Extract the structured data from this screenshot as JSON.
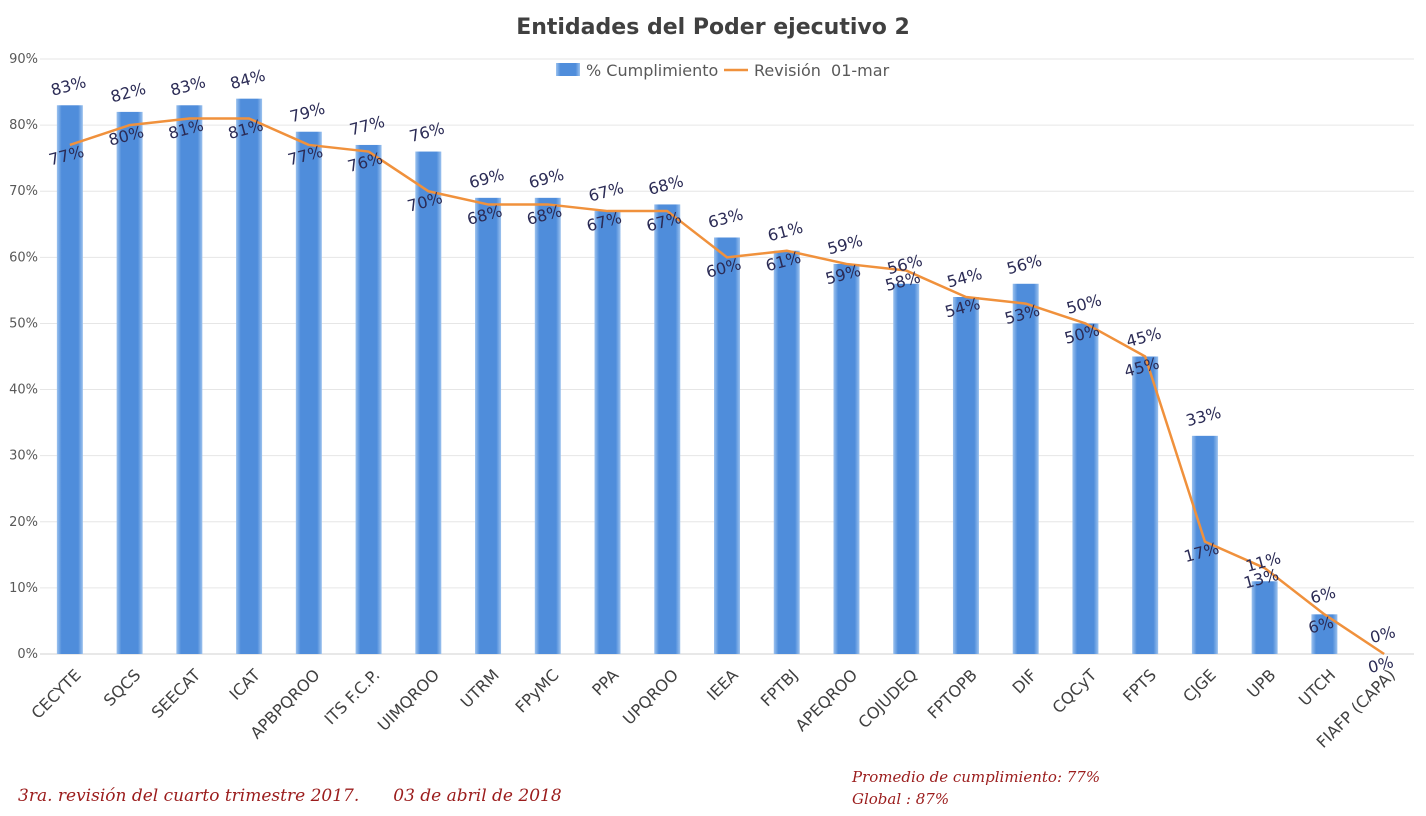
{
  "chart_data": {
    "type": "bar",
    "title": "Entidades del Poder ejecutivo 2",
    "categories": [
      "CECYTE",
      "SQCS",
      "SEECAT",
      "ICAT",
      "APBPQROO",
      "ITS F.C.P.",
      "UIMQROO",
      "UTRM",
      "FPyMC",
      "PPA",
      "UPQROO",
      "IEEA",
      "FPTBJ",
      "APEQROO",
      "COJUDEQ",
      "FPTOPB",
      "DIF",
      "CQCyT",
      "FPTS",
      "CJGE",
      "UPB",
      "UTCH",
      "FIAFP (CAPA)"
    ],
    "series": [
      {
        "name": "% Cumplimiento",
        "type": "bar",
        "color": "#4f8ddb",
        "values": [
          83,
          82,
          83,
          84,
          79,
          77,
          76,
          69,
          69,
          67,
          68,
          63,
          61,
          59,
          56,
          54,
          56,
          50,
          45,
          33,
          11,
          6,
          0
        ],
        "labels": [
          "83%",
          "82%",
          "83%",
          "84%",
          "79%",
          "77%",
          "76%",
          "69%",
          "69%",
          "67%",
          "68%",
          "63%",
          "61%",
          "59%",
          "56%",
          "54%",
          "56%",
          "50%",
          "45%",
          "33%",
          "11%",
          "6%",
          "0%"
        ]
      },
      {
        "name": "Revisión  01-mar",
        "type": "line",
        "color": "#f0913c",
        "values": [
          77,
          80,
          81,
          81,
          77,
          76,
          70,
          68,
          68,
          67,
          67,
          60,
          61,
          59,
          58,
          54,
          53,
          50,
          45,
          17,
          13,
          6,
          0
        ],
        "labels": [
          "77%",
          "80%",
          "81%",
          "81%",
          "77%",
          "76%",
          "70%",
          "68%",
          "68%",
          "67%",
          "67%",
          "60%",
          "61%",
          "59%",
          "58%",
          "54%",
          "53%",
          "50%",
          "45%",
          "17%",
          "13%",
          "6%",
          "0%"
        ]
      }
    ],
    "ylim": [
      0,
      90
    ],
    "yticks": [
      "0%",
      "10%",
      "20%",
      "30%",
      "40%",
      "50%",
      "60%",
      "70%",
      "80%",
      "90%"
    ],
    "grid": true,
    "legend_position": "top-center"
  },
  "footer": {
    "left_text": "3ra. revisión del cuarto trimestre 2017.",
    "left_date": "03 de abril de 2018",
    "average_text": "Promedio de cumplimiento: 77%",
    "global_text": "Global : 87%"
  }
}
